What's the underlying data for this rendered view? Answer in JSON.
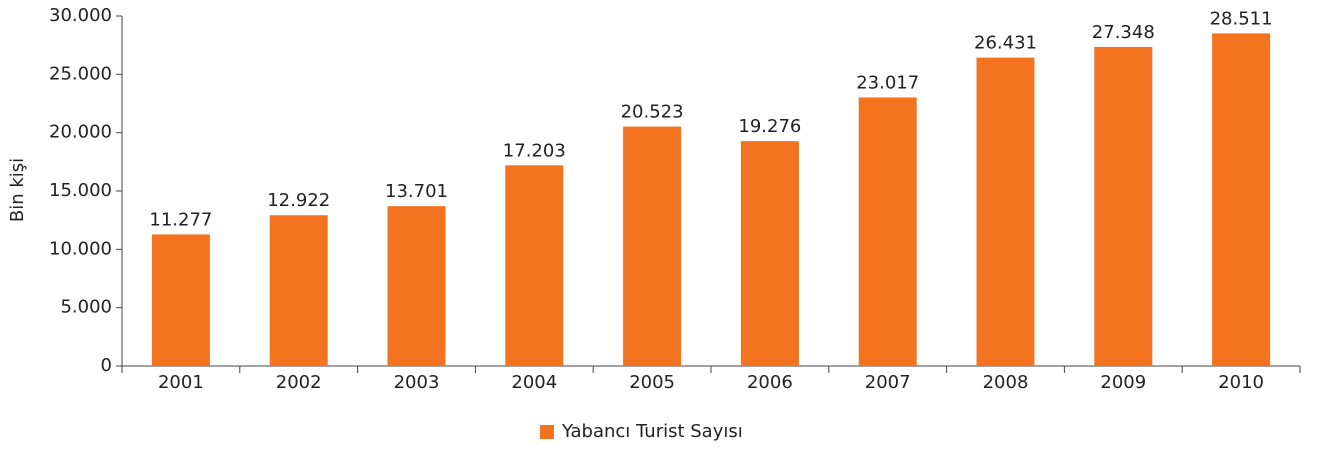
{
  "chart_data": {
    "type": "bar",
    "y_label": "Bin kişi",
    "categories": [
      "2001",
      "2002",
      "2003",
      "2004",
      "2005",
      "2006",
      "2007",
      "2008",
      "2009",
      "2010"
    ],
    "series": [
      {
        "name": "Yabancı Turist Sayısı",
        "color": "#f37321",
        "values": [
          11277,
          12922,
          13701,
          17203,
          20523,
          19276,
          23017,
          26431,
          27348,
          28511
        ],
        "value_labels": [
          "11.277",
          "12.922",
          "13.701",
          "17.203",
          "20.523",
          "19.276",
          "23.017",
          "26.431",
          "27.348",
          "28.511"
        ]
      }
    ],
    "ylim": [
      0,
      30000
    ],
    "yticks": [
      0,
      {
        "value": 5000,
        "label": "5.000"
      },
      {
        "value": 10000,
        "label": "10.000"
      },
      {
        "value": 15000,
        "label": "15.000"
      },
      {
        "value": 20000,
        "label": "20.000"
      },
      {
        "value": 25000,
        "label": "25.000"
      },
      {
        "value": 30000,
        "label": "30.000"
      }
    ],
    "grid": false,
    "legend": "bottom"
  }
}
